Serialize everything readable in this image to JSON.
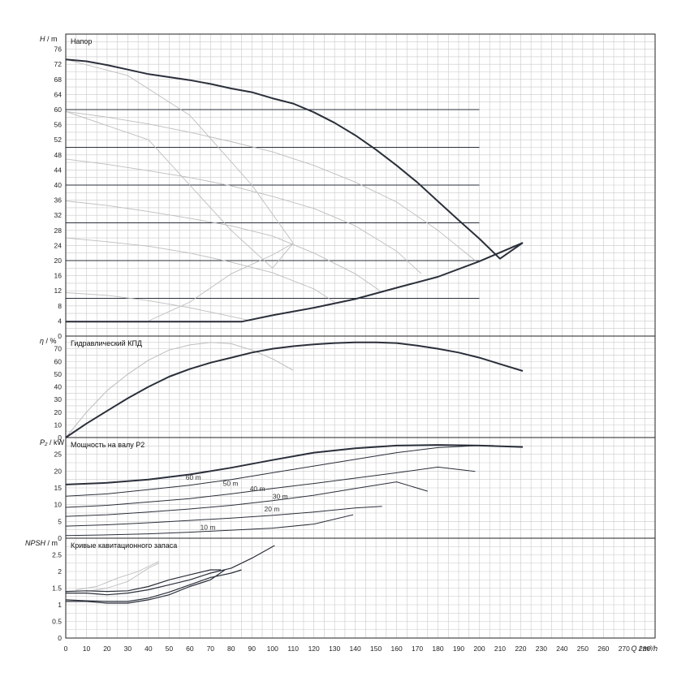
{
  "colors": {
    "main_curve": "#2a2f3a",
    "speed_curve": "#bdbdbd",
    "head_line": "#2a2f3a",
    "grid": "#c9c9c9"
  },
  "x_axis": {
    "label": "Q / m³/h",
    "range": [
      0,
      285
    ],
    "ticks": [
      0,
      10,
      20,
      30,
      40,
      50,
      60,
      70,
      80,
      90,
      100,
      110,
      120,
      130,
      140,
      150,
      160,
      170,
      180,
      190,
      200,
      210,
      220,
      230,
      240,
      250,
      260,
      270,
      280
    ]
  },
  "chart_data": [
    {
      "id": "head",
      "type": "line",
      "title": "Напор",
      "ylabel_symbol": "H",
      "ylabel_unit": "m",
      "ylim": [
        0,
        80
      ],
      "yticks": [
        0,
        4,
        8,
        12,
        16,
        20,
        24,
        28,
        32,
        36,
        40,
        44,
        48,
        52,
        56,
        60,
        64,
        68,
        72,
        76
      ],
      "grid": true,
      "max_curve": {
        "x": [
          0,
          10,
          20,
          30,
          40,
          50,
          60,
          70,
          80,
          90,
          100,
          110,
          120,
          130,
          140,
          150,
          160,
          170,
          180,
          190,
          200,
          210,
          221
        ],
        "y": [
          73.3,
          72.8,
          71.8,
          70.6,
          69.4,
          68.6,
          67.8,
          66.8,
          65.6,
          64.6,
          63.0,
          61.6,
          59.3,
          56.5,
          53.2,
          49.4,
          45.2,
          40.7,
          35.7,
          30.7,
          25.8,
          20.5,
          24.7
        ]
      },
      "envelope_low": {
        "x": [
          0,
          30,
          60,
          85,
          100,
          120,
          140,
          160,
          180,
          200,
          221
        ],
        "y": [
          3.8,
          3.8,
          3.8,
          3.8,
          5.5,
          7.5,
          9.8,
          12.8,
          15.7,
          19.8,
          24.7
        ]
      },
      "speed_curves": [
        {
          "x": [
            0,
            20,
            40,
            60,
            80,
            100,
            120,
            140,
            160,
            180,
            198
          ],
          "y": [
            59.5,
            58.0,
            56.2,
            54.0,
            51.5,
            48.8,
            45.2,
            40.8,
            35.5,
            28.0,
            20.0
          ]
        },
        {
          "x": [
            0,
            20,
            40,
            60,
            80,
            100,
            120,
            140,
            160,
            172
          ],
          "y": [
            46.9,
            45.5,
            43.8,
            42.0,
            39.8,
            37.0,
            33.8,
            29.2,
            22.5,
            16.5
          ]
        },
        {
          "x": [
            0,
            20,
            40,
            60,
            80,
            100,
            120,
            140,
            152
          ],
          "y": [
            35.8,
            34.6,
            33.0,
            31.2,
            29.2,
            26.5,
            22.0,
            16.5,
            12.0
          ]
        },
        {
          "x": [
            0,
            20,
            40,
            60,
            80,
            100,
            120,
            130
          ],
          "y": [
            26.0,
            25.0,
            23.8,
            22.0,
            19.6,
            16.8,
            12.5,
            9.0
          ]
        },
        {
          "x": [
            0,
            20,
            40,
            60,
            80,
            90
          ],
          "y": [
            11.5,
            10.8,
            9.4,
            7.5,
            5.2,
            4.0
          ]
        }
      ],
      "system_curves": [
        {
          "x": [
            0,
            40,
            60,
            80,
            100,
            110
          ],
          "y": [
            59.5,
            52.0,
            40.0,
            28.0,
            18.0,
            24.6
          ]
        },
        {
          "x": [
            0,
            30,
            60,
            90,
            110
          ],
          "y": [
            73.3,
            69.0,
            58.5,
            40.0,
            24.6
          ]
        },
        {
          "x": [
            40,
            60,
            80,
            100,
            110
          ],
          "y": [
            4.0,
            9.0,
            16.5,
            21.5,
            24.6
          ]
        }
      ],
      "hlines": [
        60,
        50,
        40,
        30,
        20,
        10
      ]
    },
    {
      "id": "efficiency",
      "type": "line",
      "title": "Гидравлический КПД",
      "ylabel_symbol": "η",
      "ylabel_unit": "%",
      "ylim": [
        0,
        80
      ],
      "yticks": [
        0,
        10,
        20,
        30,
        40,
        50,
        60,
        70
      ],
      "grid": true,
      "main": {
        "x": [
          0,
          10,
          20,
          30,
          40,
          50,
          60,
          70,
          80,
          90,
          100,
          110,
          120,
          130,
          140,
          150,
          160,
          170,
          180,
          190,
          200,
          210,
          221
        ],
        "y": [
          0,
          11,
          21,
          31,
          40,
          48,
          54,
          59,
          63,
          67,
          70,
          72,
          73.5,
          74.5,
          75,
          75,
          74.5,
          72.5,
          70,
          67,
          63,
          58,
          52.5
        ]
      },
      "secondary": {
        "x": [
          0,
          10,
          20,
          30,
          40,
          50,
          60,
          70,
          80,
          90,
          100,
          110
        ],
        "y": [
          0,
          20,
          37,
          50,
          61,
          69,
          73,
          75,
          74,
          69,
          62,
          53
        ]
      }
    },
    {
      "id": "power",
      "type": "line",
      "title": "Мощность на валу P2",
      "ylabel_symbol": "P₂",
      "ylabel_unit": "kW",
      "ylim": [
        0,
        30
      ],
      "yticks": [
        0,
        5,
        10,
        15,
        20,
        25
      ],
      "grid": true,
      "max_curve": {
        "x": [
          0,
          20,
          40,
          60,
          80,
          100,
          120,
          140,
          160,
          180,
          200,
          221
        ],
        "y": [
          16,
          16.5,
          17.5,
          19,
          21,
          23.3,
          25.5,
          26.8,
          27.6,
          27.8,
          27.6,
          27.2
        ]
      },
      "label_60": "60 m",
      "label_50": "50 m",
      "label_40": "40 m",
      "label_30": "30 m",
      "label_20": "20 m",
      "label_10": "10 m",
      "curves": [
        {
          "x": [
            0,
            20,
            40,
            60,
            80,
            100,
            120,
            140,
            160,
            180,
            200,
            207
          ],
          "y": [
            12.5,
            13.2,
            14.5,
            15.8,
            17.5,
            19.5,
            21.5,
            23.5,
            25.5,
            27.0,
            27.6,
            27.6
          ]
        },
        {
          "x": [
            0,
            20,
            40,
            60,
            80,
            100,
            120,
            140,
            160,
            180,
            198
          ],
          "y": [
            9.2,
            9.8,
            10.8,
            11.8,
            13.2,
            14.8,
            16.3,
            17.9,
            19.5,
            21.2,
            19.9
          ]
        },
        {
          "x": [
            0,
            20,
            40,
            60,
            80,
            100,
            120,
            140,
            160,
            175
          ],
          "y": [
            6.5,
            7.0,
            7.8,
            8.7,
            9.8,
            11.2,
            12.8,
            14.8,
            16.8,
            14.0
          ]
        },
        {
          "x": [
            0,
            20,
            40,
            60,
            80,
            100,
            120,
            140,
            153
          ],
          "y": [
            3.6,
            4.0,
            4.6,
            5.3,
            6.0,
            6.8,
            7.8,
            9.0,
            9.5
          ]
        },
        {
          "x": [
            0,
            20,
            40,
            60,
            80,
            100,
            120,
            139
          ],
          "y": [
            0.8,
            1.0,
            1.3,
            1.8,
            2.4,
            3.0,
            4.2,
            7.0
          ]
        }
      ]
    },
    {
      "id": "npsh",
      "type": "line",
      "title": "Кривые кавитационного запаса",
      "ylabel_symbol": "NPSH",
      "ylabel_unit": "m",
      "ylim": [
        0,
        3
      ],
      "yticks": [
        0,
        0.5,
        1,
        1.5,
        2,
        2.5
      ],
      "grid": true,
      "curves": [
        {
          "x": [
            0,
            10,
            20,
            30,
            40,
            50,
            60,
            70,
            77
          ],
          "y": [
            1.1,
            1.1,
            1.05,
            1.05,
            1.15,
            1.3,
            1.55,
            1.75,
            2.05
          ]
        },
        {
          "x": [
            0,
            10,
            20,
            30,
            40,
            50,
            60,
            70,
            80,
            85
          ],
          "y": [
            1.15,
            1.12,
            1.1,
            1.1,
            1.2,
            1.38,
            1.6,
            1.82,
            1.95,
            2.05
          ]
        },
        {
          "x": [
            0,
            10,
            20,
            30,
            40,
            50,
            60,
            70,
            80,
            90,
            101
          ],
          "y": [
            1.35,
            1.35,
            1.3,
            1.35,
            1.45,
            1.6,
            1.75,
            1.95,
            2.1,
            2.4,
            2.78
          ]
        },
        {
          "x": [
            0,
            10,
            20,
            30,
            40,
            50,
            60,
            70,
            75
          ],
          "y": [
            1.4,
            1.42,
            1.4,
            1.42,
            1.55,
            1.75,
            1.9,
            2.05,
            2.05
          ]
        }
      ],
      "light_curves": [
        {
          "x": [
            10,
            20,
            30,
            35,
            40,
            45
          ],
          "y": [
            1.4,
            1.5,
            1.7,
            1.9,
            2.1,
            2.25
          ]
        },
        {
          "x": [
            5,
            15,
            25,
            35,
            40,
            45
          ],
          "y": [
            1.45,
            1.55,
            1.8,
            2.0,
            2.15,
            2.3
          ]
        }
      ]
    }
  ]
}
